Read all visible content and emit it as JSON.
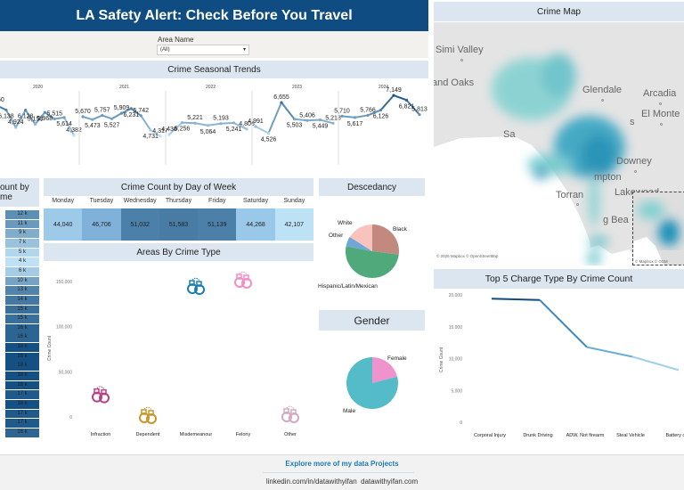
{
  "header": {
    "title": "LA Safety Alert: Check Before You Travel"
  },
  "filter": {
    "label": "Area Name",
    "value": "(All)"
  },
  "trends": {
    "title": "Crime Seasonal Trends",
    "years": [
      "2020",
      "2021",
      "2022",
      "2023",
      "2024"
    ],
    "labels": [
      {
        "year": "2020",
        "values": [
          "6,460",
          "6,138",
          "4,924",
          "6,128",
          "5,153",
          "5,968",
          "5,515",
          "5,614",
          "4,382"
        ]
      },
      {
        "year": "2021",
        "values": [
          "5,670",
          "5,473",
          "5,757",
          "5,527",
          "5,909",
          "6,231",
          "5,742",
          "4,731",
          "4,317"
        ]
      },
      {
        "year": "2022",
        "values": [
          "4,436",
          "5,256",
          "5,221",
          "5,064",
          "5,193",
          "5,241",
          "4,806"
        ]
      },
      {
        "year": "2023",
        "values": [
          "4,991",
          "4,526",
          "6,655",
          "5,503",
          "5,406",
          "5,449",
          "5,218"
        ]
      },
      {
        "year": "2024",
        "values": [
          "5,710",
          "5,617",
          "5,766",
          "6,126",
          "7,149",
          "6,821",
          "5,813"
        ]
      }
    ]
  },
  "time_heatmap": {
    "title_line1": "ount by",
    "title_line2": "me",
    "values": [
      "12 k",
      "11 k",
      "9 k",
      "7 k",
      "5 k",
      "4 k",
      "6 k",
      "10 k",
      "13 k",
      "14 k",
      "15 k",
      "15 k",
      "16 k",
      "16 k",
      "18 k",
      "18 k",
      "18 k",
      "18 k",
      "18 k",
      "17 k",
      "18 k",
      "17 k",
      "17 k",
      "16 k"
    ]
  },
  "day_of_week": {
    "title": "Crime Count by Day of Week",
    "days": [
      {
        "name": "Monday",
        "value": "44,040",
        "color": "#9ecae9"
      },
      {
        "name": "Tuesday",
        "value": "46,706",
        "color": "#7fb1d9"
      },
      {
        "name": "Wednesday",
        "value": "51,032",
        "color": "#4b80aa"
      },
      {
        "name": "Thursday",
        "value": "51,583",
        "color": "#487ca5"
      },
      {
        "name": "Friday",
        "value": "51,139",
        "color": "#4c80a9"
      },
      {
        "name": "Saturday",
        "value": "44,268",
        "color": "#9ac8e8"
      },
      {
        "name": "Sunday",
        "value": "42,107",
        "color": "#bde1f5"
      }
    ]
  },
  "crime_type": {
    "title": "Areas By Crime Type",
    "ylabel": "Crime Count",
    "yticks": [
      "150,000",
      "100,000",
      "50,000",
      "0"
    ],
    "categories": [
      {
        "name": "Infraction",
        "value": 25000,
        "color": "#b8417f"
      },
      {
        "name": "Dependent",
        "value": 2000,
        "color": "#c9962a"
      },
      {
        "name": "Misdemeanour",
        "value": 145000,
        "color": "#1b7fb0"
      },
      {
        "name": "Felony",
        "value": 152000,
        "color": "#f48dc3"
      },
      {
        "name": "Other",
        "value": 3000,
        "color": "#d3a9c4"
      }
    ]
  },
  "descendancy": {
    "title": "Descedancy",
    "slices": [
      {
        "name": "Black",
        "value": 27,
        "color": "#c28a7e"
      },
      {
        "name": "Hispanic/Latin/Mexican",
        "value": 51,
        "color": "#4fa97a"
      },
      {
        "name": "Other",
        "value": 6,
        "color": "#6fa8d6"
      },
      {
        "name": "White",
        "value": 16,
        "color": "#f7c3bc"
      }
    ]
  },
  "gender": {
    "title": "Gender",
    "slices": [
      {
        "name": "Female",
        "value": 21,
        "color": "#ef93cc"
      },
      {
        "name": "Male",
        "value": 79,
        "color": "#53bcc8"
      }
    ]
  },
  "map": {
    "title": "Crime Map",
    "cities": [
      "Simi Valley",
      "and Oaks",
      "Glendale",
      "Arcadia",
      "El Monte",
      "Sa",
      "Downey",
      "mpton",
      "Torran",
      "Lakewood",
      "g Bea",
      "s"
    ],
    "attribution": "© 2025 Mapbox © OpenStreetMap",
    "inset_attribution": "© Mapbox © OSM"
  },
  "charges": {
    "title": "Top 5 Charge Type By Crime Count",
    "ylabel": "Crime Count",
    "yticks": [
      "20,000",
      "15,000",
      "10,000",
      "5,000",
      "0"
    ]
  },
  "chart_data": [
    {
      "type": "line",
      "title": "Top 5 Charge Type By Crime Count",
      "categories": [
        "Corporal Injury",
        "Drunk Driving",
        "ADW, Not firearm",
        "Steal Vehicle",
        "Battery on"
      ],
      "values": [
        19400,
        19200,
        11800,
        10300,
        8200
      ],
      "ylabel": "Crime Count",
      "ylim": [
        0,
        20000
      ]
    },
    {
      "type": "scatter",
      "title": "Areas By Crime Type",
      "categories": [
        "Infraction",
        "Dependent",
        "Misdemeanour",
        "Felony",
        "Other"
      ],
      "values": [
        25000,
        2000,
        145000,
        152000,
        3000
      ],
      "ylabel": "Crime Count",
      "ylim": [
        0,
        160000
      ]
    }
  ],
  "footer": {
    "link": "Explore more of my data Projects",
    "linkedin": "linkedin.com/in/datawithyifan",
    "site": "datawithyifan.com"
  }
}
